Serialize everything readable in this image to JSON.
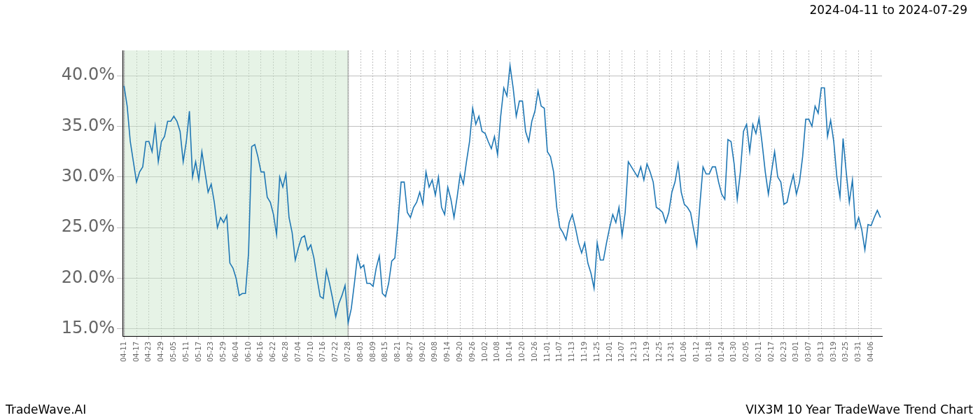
{
  "chart_data": {
    "type": "line",
    "title": "2024-04-11 to 2024-07-29",
    "footer_left": "TradeWave.AI",
    "footer_right": "VIX3M 10 Year TradeWave Trend Chart",
    "highlight": {
      "from": "04-11",
      "to": "07-28"
    },
    "color": "#1f77b4",
    "grid": true,
    "ylim": [
      14.3,
      42.5
    ],
    "yticks": [
      {
        "value": 15,
        "label": "15.0%"
      },
      {
        "value": 20,
        "label": "20.0%"
      },
      {
        "value": 25,
        "label": "25.0%"
      },
      {
        "value": 30,
        "label": "30.0%"
      },
      {
        "value": 35,
        "label": "35.0%"
      },
      {
        "value": 40,
        "label": "40.0%"
      }
    ],
    "categories": [
      "04-11",
      null,
      null,
      null,
      "04-17",
      null,
      null,
      null,
      "04-23",
      null,
      null,
      null,
      "04-29",
      null,
      null,
      null,
      "05-05",
      null,
      null,
      null,
      "05-11",
      null,
      null,
      null,
      "05-17",
      null,
      null,
      null,
      "05-23",
      null,
      null,
      null,
      "05-29",
      null,
      null,
      null,
      "06-04",
      null,
      null,
      null,
      "06-10",
      null,
      null,
      null,
      "06-16",
      null,
      null,
      null,
      "06-22",
      null,
      null,
      null,
      "06-28",
      null,
      null,
      null,
      "07-04",
      null,
      null,
      null,
      "07-10",
      null,
      null,
      null,
      "07-16",
      null,
      null,
      null,
      "07-22",
      null,
      null,
      null,
      "07-28",
      null,
      null,
      null,
      "08-03",
      null,
      null,
      null,
      "08-09",
      null,
      null,
      null,
      "08-15",
      null,
      null,
      null,
      "08-21",
      null,
      null,
      null,
      "08-27",
      null,
      null,
      null,
      "09-02",
      null,
      null,
      null,
      "09-08",
      null,
      null,
      null,
      "09-14",
      null,
      null,
      null,
      "09-20",
      null,
      null,
      null,
      "09-26",
      null,
      null,
      null,
      "10-02",
      null,
      null,
      null,
      "10-08",
      null,
      null,
      null,
      "10-14",
      null,
      null,
      null,
      "10-20",
      null,
      null,
      null,
      "10-26",
      null,
      null,
      null,
      "11-01",
      null,
      null,
      null,
      "11-07",
      null,
      null,
      null,
      "11-13",
      null,
      null,
      null,
      "11-19",
      null,
      null,
      null,
      "11-25",
      null,
      null,
      null,
      "12-01",
      null,
      null,
      null,
      "12-07",
      null,
      null,
      null,
      "12-13",
      null,
      null,
      null,
      "12-19",
      null,
      null,
      null,
      "12-25",
      null,
      null,
      null,
      "12-31",
      null,
      null,
      null,
      "01-06",
      null,
      null,
      null,
      "01-12",
      null,
      null,
      null,
      "01-18",
      null,
      null,
      null,
      "01-24",
      null,
      null,
      null,
      "01-30",
      null,
      null,
      null,
      "02-05",
      null,
      null,
      null,
      "02-11",
      null,
      null,
      null,
      "02-17",
      null,
      null,
      null,
      "02-23",
      null,
      null,
      null,
      "03-01",
      null,
      null,
      null,
      "03-07",
      null,
      null,
      null,
      "03-13",
      null,
      null,
      null,
      "03-19",
      null,
      null,
      null,
      "03-25",
      null,
      null,
      null,
      "03-31",
      null,
      null,
      null,
      "04-06",
      null,
      null,
      null
    ],
    "values": [
      39,
      37,
      33.5,
      31.5,
      29.5,
      30.5,
      31,
      33.5,
      33.5,
      32.5,
      35,
      31.5,
      33.5,
      34,
      35.5,
      35.5,
      36,
      35.5,
      34.5,
      31.5,
      33.5,
      36.5,
      30,
      31.5,
      29.7,
      32.5,
      30.5,
      28.5,
      29.3,
      27.5,
      25,
      26,
      25.5,
      26.2,
      21.5,
      21,
      20,
      18.3,
      18.5,
      18.5,
      22.5,
      33,
      33.2,
      32,
      30.5,
      30.5,
      28,
      27.5,
      26.3,
      24.3,
      30,
      29,
      30.3,
      26,
      24.5,
      21.8,
      23,
      24,
      24.2,
      22.8,
      23.3,
      22,
      20,
      18.2,
      18,
      20.8,
      19.5,
      18,
      16.2,
      17.5,
      18.3,
      19.3,
      15.6,
      17,
      19.5,
      22.2,
      21,
      21.3,
      19.5,
      19.5,
      19.2,
      21,
      22.2,
      18.5,
      18.2,
      19.5,
      21.7,
      22,
      25.5,
      29.5,
      29.5,
      26.5,
      26,
      27,
      27.5,
      28.5,
      27.3,
      30.5,
      29,
      29.7,
      28.2,
      30,
      27,
      26.3,
      29,
      27.8,
      26,
      28,
      30.3,
      29.3,
      31.5,
      33.5,
      36.8,
      35.2,
      36,
      34.5,
      34.3,
      33.5,
      32.8,
      34,
      32.2,
      36,
      38.8,
      38,
      41,
      38.8,
      36,
      37.5,
      37.5,
      34.5,
      33.5,
      35.5,
      36.5,
      38.5,
      37,
      36.8,
      32.5,
      32,
      30.5,
      27,
      25,
      24.5,
      23.8,
      25.5,
      26.3,
      25,
      23.5,
      22.5,
      23.5,
      21.5,
      20.5,
      19,
      23.5,
      21.8,
      21.8,
      23.5,
      25,
      26.3,
      25.5,
      27,
      24.2,
      26.5,
      31.5,
      31,
      30.5,
      30,
      31,
      29.7,
      31.3,
      30.5,
      29.5,
      27,
      26.8,
      26.5,
      25.5,
      26.5,
      28.5,
      29.5,
      31.3,
      28.5,
      27.3,
      27,
      26.5,
      24.8,
      23.2,
      27.3,
      31,
      30.3,
      30.3,
      31,
      31,
      29.5,
      28.3,
      27.8,
      33.7,
      33.5,
      31.3,
      27.8,
      30.5,
      34.5,
      35.2,
      32.5,
      35.2,
      34.3,
      35.8,
      33.3,
      30.5,
      28.3,
      30.5,
      32.5,
      30,
      29.5,
      27.3,
      27.5,
      29,
      30.2,
      28.3,
      29.5,
      32,
      35.7,
      35.7,
      35,
      37,
      36.3,
      38.8,
      38.8,
      34,
      35.6,
      33.5,
      30,
      28,
      33.8,
      30.5,
      27.5,
      29.7,
      25,
      26,
      24.8,
      22.8,
      25.3,
      25.2,
      26,
      26.7,
      26
    ]
  }
}
